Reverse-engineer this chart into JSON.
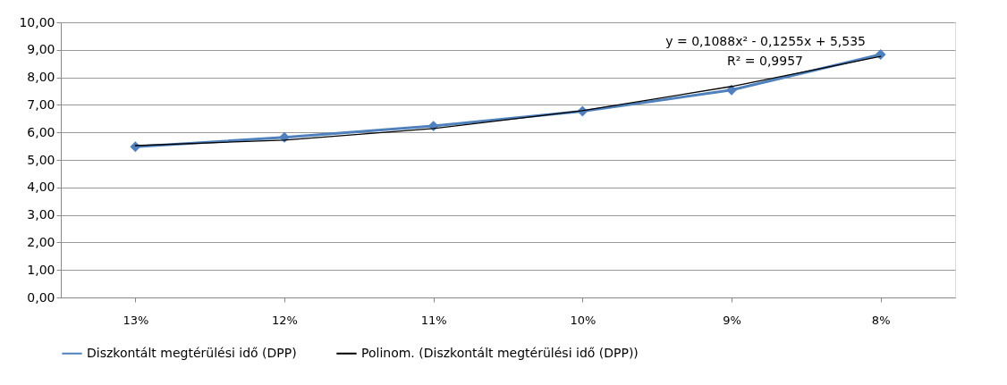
{
  "chart_data": {
    "type": "line",
    "categories": [
      "13%",
      "12%",
      "11%",
      "10%",
      "9%",
      "8%"
    ],
    "series": [
      {
        "name": "Diszkontált megtérülési idő (DPP)",
        "color": "#4f81bd",
        "values": [
          5.48,
          5.82,
          6.23,
          6.77,
          7.54,
          8.83
        ],
        "marker": "diamond"
      },
      {
        "name": "Polinom. (Diszkontált megtérülési idő (DPP))",
        "color": "#000000",
        "type": "line",
        "values": [
          5.52,
          5.72,
          6.14,
          6.79,
          7.67,
          8.76
        ],
        "marker": "none"
      }
    ],
    "ylim": [
      0,
      10
    ],
    "yticks": [
      {
        "value": 0,
        "label": "0,00"
      },
      {
        "value": 1,
        "label": "1,00"
      },
      {
        "value": 2,
        "label": "2,00"
      },
      {
        "value": 3,
        "label": "3,00"
      },
      {
        "value": 4,
        "label": "4,00"
      },
      {
        "value": 5,
        "label": "5,00"
      },
      {
        "value": 6,
        "label": "6,00"
      },
      {
        "value": 7,
        "label": "7,00"
      },
      {
        "value": 8,
        "label": "8,00"
      },
      {
        "value": 9,
        "label": "9,00"
      },
      {
        "value": 10,
        "label": "10,00"
      }
    ],
    "annotations": [
      "y = 0,1088x² - 0,1255x + 5,535",
      "R² = 0,9957"
    ],
    "grid": "y",
    "legend": "bottom"
  }
}
